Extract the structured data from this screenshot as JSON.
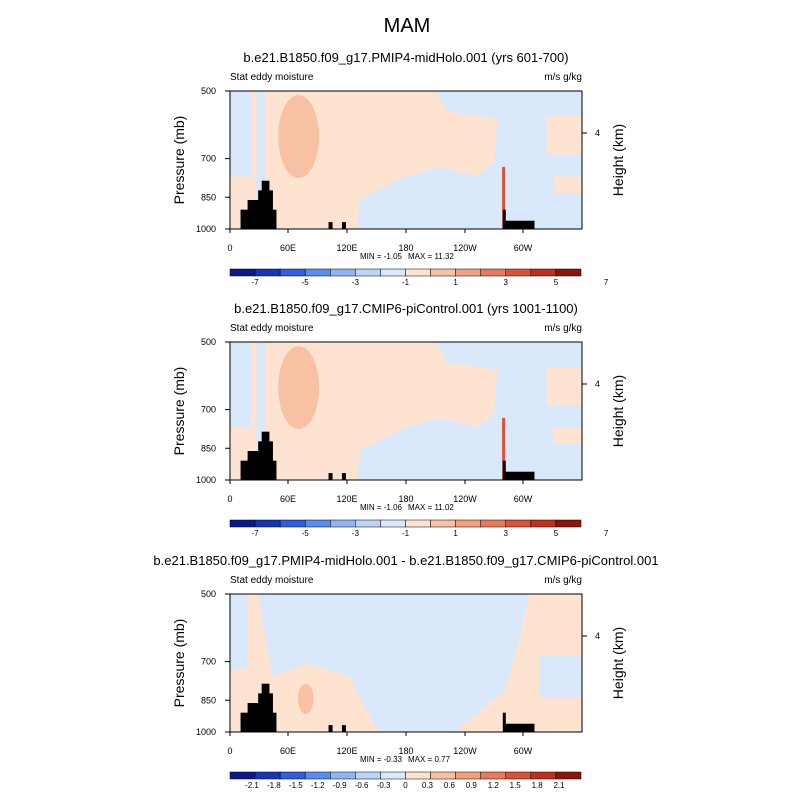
{
  "figure": {
    "title": "MAM"
  },
  "chart_data": [
    {
      "type": "heatmap",
      "title": "b.e21.B1850.f09_g17.PMIP4-midHolo.001 (yrs 601-700)",
      "left_label": "Stat eddy moisture",
      "right_label": "m/s g/kg",
      "ylabel": "Pressure (mb)",
      "y2label": "Height (km)",
      "y_ticks": [
        "500",
        "700",
        "850",
        "1000"
      ],
      "y2_ticks": [
        "4"
      ],
      "x_ticks": [
        "0",
        "60E",
        "120E",
        "180",
        "120W",
        "60W"
      ],
      "min_label": "MIN =  -1.05",
      "max_label": "MAX =  11.32",
      "colorbar_ticks": [
        "-7",
        "-5",
        "-3",
        "-1",
        "1",
        "3",
        "5",
        "7"
      ],
      "colorbar_colors": [
        "#0a1a8c",
        "#1535b8",
        "#2f5fe0",
        "#5b8cf0",
        "#8fb5f5",
        "#bcd5f7",
        "#d9e9fb",
        "#fde3d0",
        "#f8c1a4",
        "#f2a07f",
        "#e87a5c",
        "#db5237",
        "#c02e1e",
        "#8f140c"
      ]
    },
    {
      "type": "heatmap",
      "title": "b.e21.B1850.f09_g17.CMIP6-piControl.001 (yrs 1001-1100)",
      "left_label": "Stat eddy moisture",
      "right_label": "m/s g/kg",
      "ylabel": "Pressure (mb)",
      "y2label": "Height (km)",
      "y_ticks": [
        "500",
        "700",
        "850",
        "1000"
      ],
      "y2_ticks": [
        "4"
      ],
      "x_ticks": [
        "0",
        "60E",
        "120E",
        "180",
        "120W",
        "60W"
      ],
      "min_label": "MIN =  -1.06",
      "max_label": "MAX =  11.02",
      "colorbar_ticks": [
        "-7",
        "-5",
        "-3",
        "-1",
        "1",
        "3",
        "5",
        "7"
      ],
      "colorbar_colors": [
        "#0a1a8c",
        "#1535b8",
        "#2f5fe0",
        "#5b8cf0",
        "#8fb5f5",
        "#bcd5f7",
        "#d9e9fb",
        "#fde3d0",
        "#f8c1a4",
        "#f2a07f",
        "#e87a5c",
        "#db5237",
        "#c02e1e",
        "#8f140c"
      ]
    },
    {
      "type": "heatmap",
      "title": "b.e21.B1850.f09_g17.PMIP4-midHolo.001 - b.e21.B1850.f09_g17.CMIP6-piControl.001",
      "left_label": "Stat eddy moisture",
      "right_label": "m/s g/kg",
      "ylabel": "Pressure (mb)",
      "y2label": "Height (km)",
      "y_ticks": [
        "500",
        "700",
        "850",
        "1000"
      ],
      "y2_ticks": [
        "4"
      ],
      "x_ticks": [
        "0",
        "60E",
        "120E",
        "180",
        "120W",
        "60W"
      ],
      "min_label": "MIN =  -0.33",
      "max_label": "MAX =   0.77",
      "colorbar_ticks": [
        "-2.1",
        "-1.8",
        "-1.5",
        "-1.2",
        "-0.9",
        "-0.6",
        "-0.3",
        "0",
        "0.3",
        "0.6",
        "0.9",
        "1.2",
        "1.5",
        "1.8",
        "2.1"
      ],
      "colorbar_colors": [
        "#0a1a8c",
        "#1535b8",
        "#2f5fe0",
        "#5b8cf0",
        "#8fb5f5",
        "#bcd5f7",
        "#d9e9fb",
        "#fde3d0",
        "#f8c1a4",
        "#f2a07f",
        "#e87a5c",
        "#db5237",
        "#c02e1e",
        "#8f140c"
      ]
    }
  ],
  "field_colors": {
    "negative_small": "#d9e9fb",
    "positive_small": "#fde3d0",
    "positive_medium": "#f8c1a4",
    "positive_strong": "#db5237",
    "topography": "#000000"
  }
}
